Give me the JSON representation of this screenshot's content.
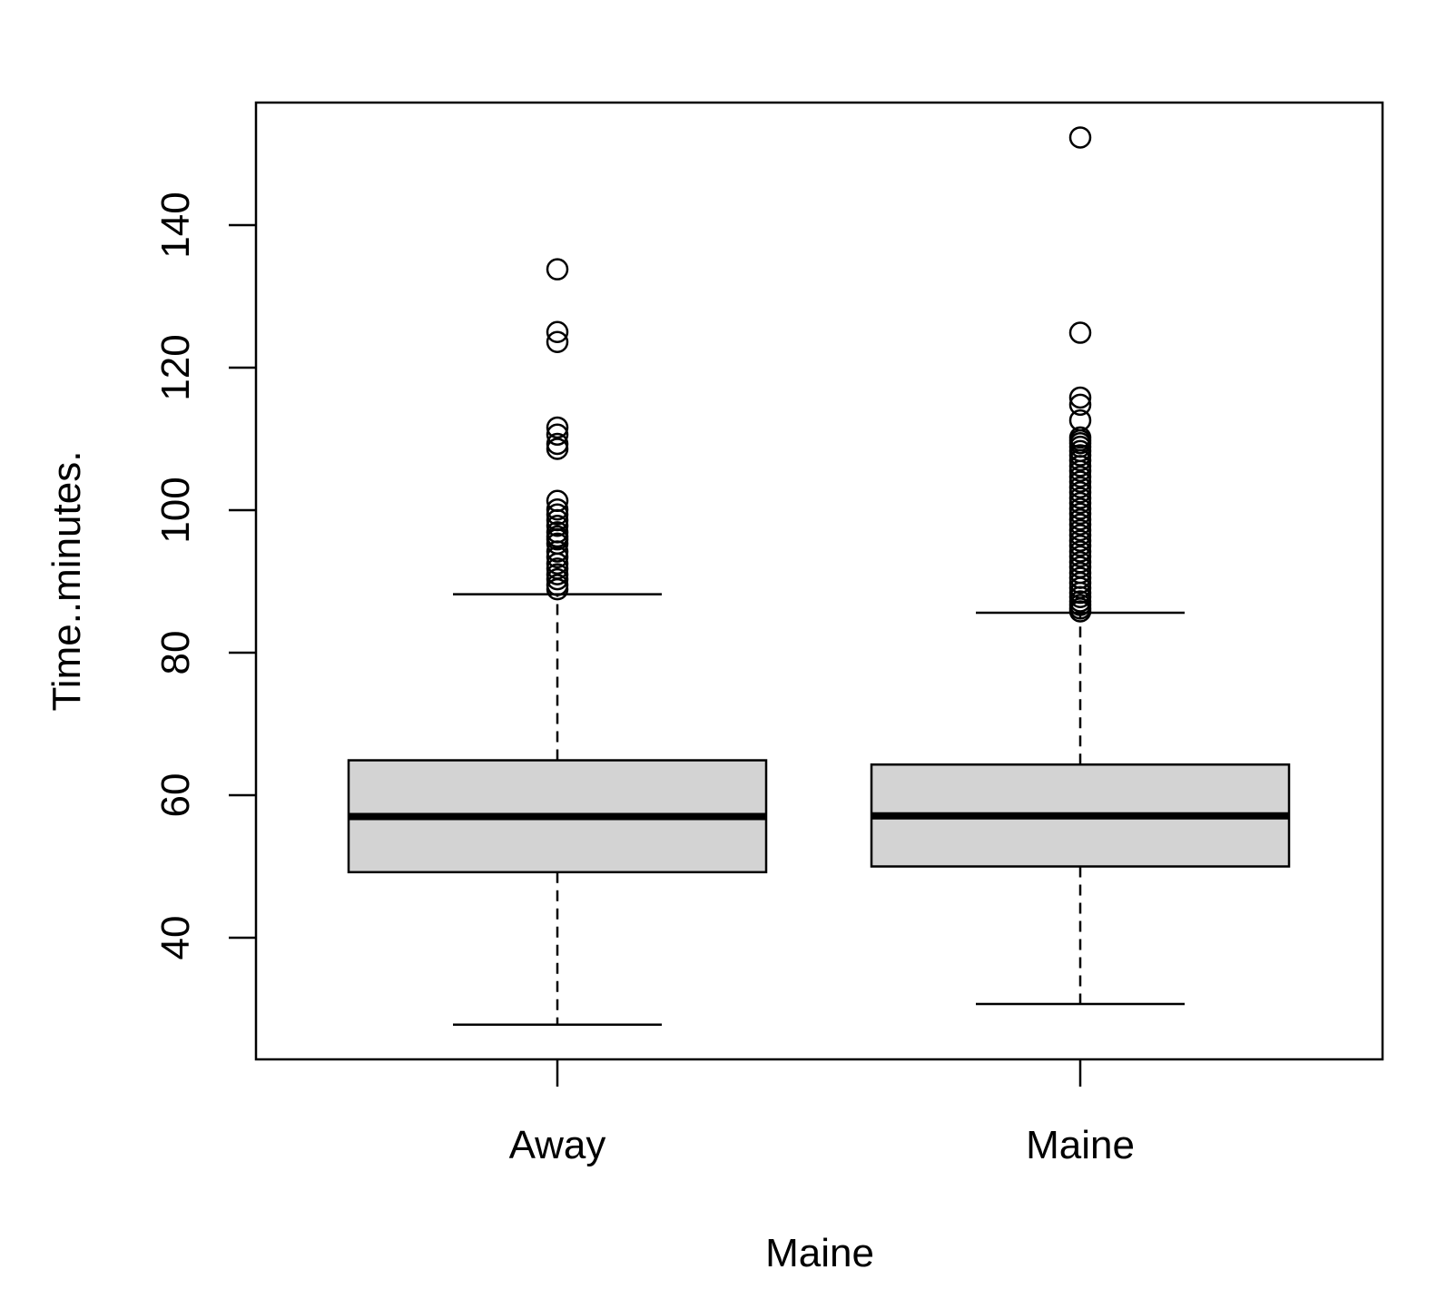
{
  "chart_data": {
    "type": "boxplot",
    "title": "",
    "xlabel": "Maine",
    "ylabel": "Time..minutes.",
    "ylim": [
      23,
      158
    ],
    "yticks": [
      40,
      60,
      80,
      100,
      120,
      140
    ],
    "ytick_labels": [
      "40",
      "60",
      "80",
      "100",
      "120",
      "140"
    ],
    "grid": false,
    "legend": "none",
    "box_fill": "#d3d3d3",
    "line_color": "#000000",
    "categories": [
      "Away",
      "Maine"
    ],
    "boxes": [
      {
        "category": "Away",
        "whisker_low": 27.8,
        "q1": 49.2,
        "median": 57.0,
        "q3": 64.9,
        "whisker_high": 88.2,
        "outliers": [
          133.8,
          125.0,
          123.6,
          111.6,
          110.6,
          109.3,
          108.6,
          101.3,
          100.1,
          99.4,
          98.6,
          97.8,
          96.9,
          96.3,
          95.9,
          95.3,
          94.2,
          93.4,
          92.5,
          91.8,
          91.0,
          90.3,
          89.5,
          88.9
        ]
      },
      {
        "category": "Maine",
        "whisker_low": 30.7,
        "q1": 50.0,
        "median": 57.1,
        "q3": 64.3,
        "whisker_high": 85.6,
        "outliers": [
          152.3,
          124.9,
          115.8,
          114.8,
          112.6,
          110.2,
          109.8,
          109.4,
          108.9,
          108.3,
          107.7,
          107.0,
          106.2,
          105.5,
          104.7,
          104.0,
          103.2,
          102.5,
          101.7,
          101.0,
          100.2,
          99.5,
          98.7,
          98.0,
          97.2,
          96.5,
          95.7,
          95.0,
          94.2,
          93.5,
          92.7,
          92.0,
          91.2,
          90.5,
          89.8,
          89.1,
          88.4,
          87.8,
          87.2,
          86.7,
          86.2,
          85.8
        ]
      }
    ]
  }
}
